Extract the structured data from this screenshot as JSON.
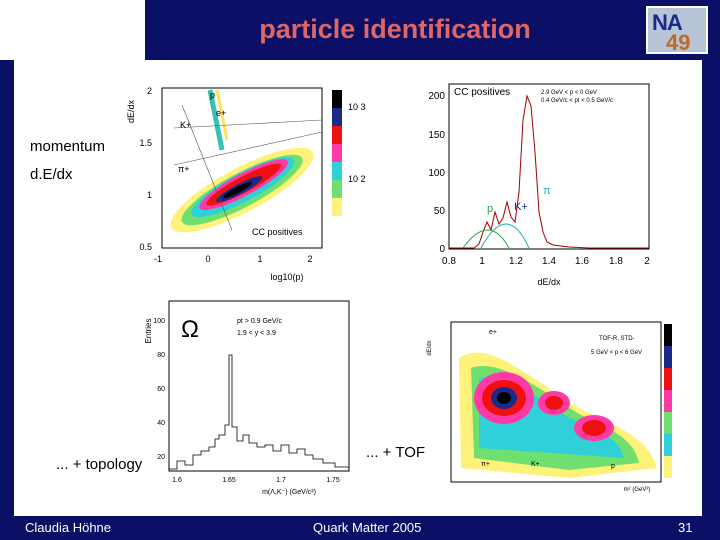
{
  "slide": {
    "title": "particle identification",
    "logo": {
      "top": "NA",
      "bottom": "49"
    },
    "labels": {
      "momentum": "momentum",
      "dedx": "d.E/dx",
      "topology": "... + topology",
      "tof": "... + TOF"
    },
    "footer": {
      "author": "Claudia Höhne",
      "conference": "Quark Matter 2005",
      "page": "31"
    }
  },
  "plots": {
    "dedx_map": {
      "ylabel": "dE/dx",
      "xlabel": "log10(p)",
      "legend": "CC positives",
      "particles": [
        "p",
        "e+",
        "K+",
        "π+"
      ],
      "yticks": [
        "2",
        "1.5",
        "1",
        "0.5"
      ],
      "xticks": [
        "-1",
        "0",
        "1",
        "2"
      ],
      "zticks": [
        "10 3",
        "10 2"
      ]
    },
    "dedx_hist": {
      "title": "CC positives",
      "cuts": [
        "2.9 GeV < p < 0 GeV",
        "0.4 GeV/c < pt < 0.5 GeV/c"
      ],
      "xlabel": "dE/dx",
      "yticks": [
        "200",
        "150",
        "100",
        "50",
        "0"
      ],
      "xticks": [
        "0.8",
        "1",
        "1.2",
        "1.4",
        "1.6",
        "1.8",
        "2"
      ],
      "particles": [
        "p",
        "K+",
        "π"
      ]
    },
    "omega": {
      "ylabel": "Entries",
      "symbol": "Ω",
      "cuts": [
        "pt > 0.9 GeV/c",
        "1.9 < y < 3.9"
      ],
      "xlabel": "m(Λ,K⁻) (GeV/c²)",
      "yticks": [
        "100",
        "80",
        "60",
        "40",
        "20"
      ],
      "xticks": [
        "1.6",
        "1.65",
        "1.7",
        "1.75"
      ]
    },
    "tof": {
      "ylabel": "dE/dx",
      "legend": [
        "TOF-R, STD-",
        "5 GeV < p < 6 GeV"
      ],
      "particles": [
        "e+",
        "π+",
        "K+",
        "p"
      ],
      "xlabel": "m² (GeV²)"
    }
  }
}
